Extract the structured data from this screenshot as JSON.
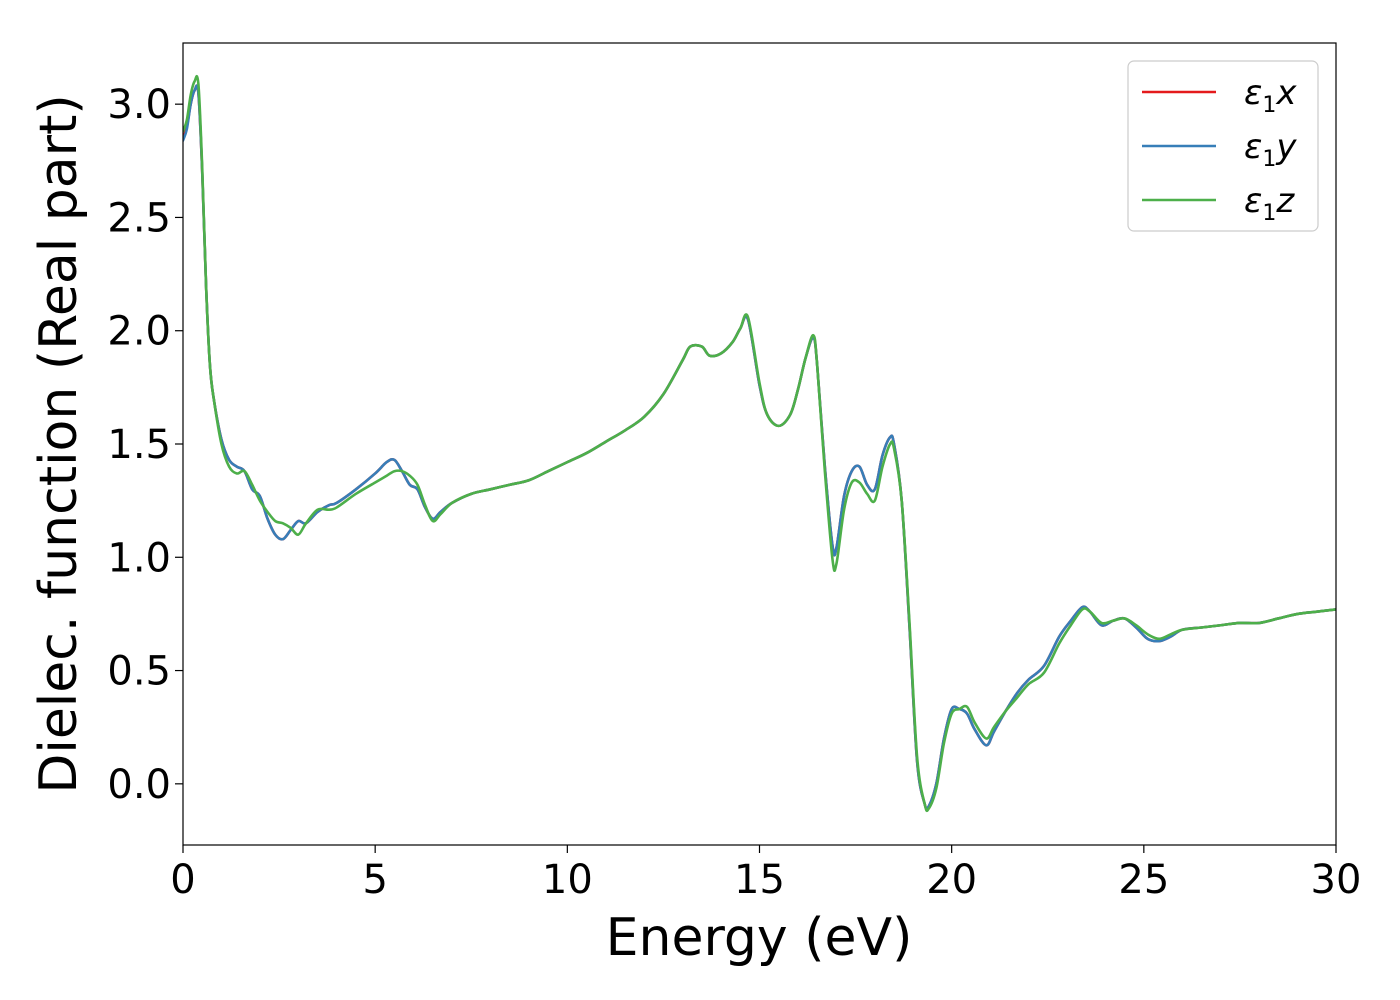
{
  "chart_data": {
    "type": "line",
    "xlabel": "Energy (eV)",
    "ylabel": "Dielec. function (Real part)",
    "xlim": [
      0,
      30
    ],
    "ylim": [
      -0.27,
      3.27
    ],
    "xticks": [
      0,
      5,
      10,
      15,
      20,
      25,
      30
    ],
    "xtick_labels": [
      "0",
      "5",
      "10",
      "15",
      "20",
      "25",
      "30"
    ],
    "yticks": [
      0.0,
      0.5,
      1.0,
      1.5,
      2.0,
      2.5,
      3.0
    ],
    "ytick_labels": [
      "0.0",
      "0.5",
      "1.0",
      "1.5",
      "2.0",
      "2.5",
      "3.0"
    ],
    "grid": false,
    "legend_position": "top-right",
    "series": [
      {
        "name": "ε1x",
        "legend_base": "ε",
        "legend_sub": "1",
        "legend_var": "x",
        "color": "#e41a1c",
        "x": [
          0,
          0.1,
          0.2,
          0.3,
          0.4,
          0.5,
          0.6,
          0.7,
          0.8,
          1.0,
          1.2,
          1.4,
          1.6,
          1.8,
          2.0,
          2.2,
          2.4,
          2.6,
          2.8,
          3.0,
          3.2,
          3.5,
          3.8,
          4.0,
          4.5,
          5.0,
          5.3,
          5.5,
          5.7,
          5.9,
          6.1,
          6.3,
          6.5,
          6.7,
          7.0,
          7.5,
          8.0,
          8.5,
          9.0,
          9.5,
          10,
          10.5,
          11,
          11.5,
          12,
          12.5,
          13,
          13.2,
          13.5,
          13.7,
          14,
          14.3,
          14.5,
          14.7,
          15,
          15.2,
          15.5,
          15.8,
          16,
          16.2,
          16.4,
          16.5,
          16.7,
          16.9,
          17.0,
          17.2,
          17.4,
          17.6,
          17.8,
          18.0,
          18.2,
          18.4,
          18.5,
          18.7,
          18.9,
          19.1,
          19.3,
          19.4,
          19.6,
          19.8,
          20.0,
          20.2,
          20.4,
          20.6,
          20.9,
          21.1,
          21.4,
          21.7,
          22.0,
          22.4,
          22.8,
          23.1,
          23.4,
          23.6,
          23.9,
          24.2,
          24.5,
          24.8,
          25.1,
          25.4,
          25.7,
          26,
          26.5,
          27,
          27.5,
          28,
          28.5,
          29,
          29.5,
          30
        ],
        "y": [
          2.85,
          2.9,
          3.0,
          3.06,
          3.05,
          2.7,
          2.2,
          1.85,
          1.7,
          1.52,
          1.43,
          1.4,
          1.38,
          1.3,
          1.27,
          1.17,
          1.1,
          1.08,
          1.12,
          1.16,
          1.15,
          1.2,
          1.23,
          1.24,
          1.3,
          1.37,
          1.42,
          1.43,
          1.38,
          1.32,
          1.3,
          1.22,
          1.17,
          1.2,
          1.24,
          1.28,
          1.3,
          1.32,
          1.34,
          1.38,
          1.42,
          1.46,
          1.51,
          1.56,
          1.62,
          1.72,
          1.87,
          1.93,
          1.93,
          1.89,
          1.9,
          1.95,
          2.01,
          2.05,
          1.76,
          1.63,
          1.58,
          1.63,
          1.74,
          1.88,
          1.97,
          1.85,
          1.4,
          1.05,
          1.04,
          1.27,
          1.38,
          1.4,
          1.32,
          1.3,
          1.45,
          1.53,
          1.5,
          1.25,
          0.7,
          0.1,
          -0.09,
          -0.1,
          0.0,
          0.2,
          0.33,
          0.33,
          0.31,
          0.24,
          0.17,
          0.23,
          0.32,
          0.4,
          0.46,
          0.52,
          0.65,
          0.72,
          0.78,
          0.76,
          0.7,
          0.72,
          0.73,
          0.69,
          0.64,
          0.63,
          0.65,
          0.68,
          0.69,
          0.7,
          0.71,
          0.71,
          0.73,
          0.75,
          0.76,
          0.77
        ]
      },
      {
        "name": "ε1y",
        "legend_base": "ε",
        "legend_sub": "1",
        "legend_var": "y",
        "color": "#377eb8",
        "x": [
          0,
          0.1,
          0.2,
          0.3,
          0.4,
          0.5,
          0.6,
          0.7,
          0.8,
          1.0,
          1.2,
          1.4,
          1.6,
          1.8,
          2.0,
          2.2,
          2.4,
          2.6,
          2.8,
          3.0,
          3.2,
          3.5,
          3.8,
          4.0,
          4.5,
          5.0,
          5.3,
          5.5,
          5.7,
          5.9,
          6.1,
          6.3,
          6.5,
          6.7,
          7.0,
          7.5,
          8.0,
          8.5,
          9.0,
          9.5,
          10,
          10.5,
          11,
          11.5,
          12,
          12.5,
          13,
          13.2,
          13.5,
          13.7,
          14,
          14.3,
          14.5,
          14.7,
          15,
          15.2,
          15.5,
          15.8,
          16,
          16.2,
          16.4,
          16.5,
          16.7,
          16.9,
          17.0,
          17.2,
          17.4,
          17.6,
          17.8,
          18.0,
          18.2,
          18.4,
          18.5,
          18.7,
          18.9,
          19.1,
          19.3,
          19.4,
          19.6,
          19.8,
          20.0,
          20.2,
          20.4,
          20.6,
          20.9,
          21.1,
          21.4,
          21.7,
          22.0,
          22.4,
          22.8,
          23.1,
          23.4,
          23.6,
          23.9,
          24.2,
          24.5,
          24.8,
          25.1,
          25.4,
          25.7,
          26,
          26.5,
          27,
          27.5,
          28,
          28.5,
          29,
          29.5,
          30
        ],
        "y": [
          2.84,
          2.89,
          3.0,
          3.06,
          3.05,
          2.7,
          2.2,
          1.85,
          1.7,
          1.52,
          1.43,
          1.4,
          1.38,
          1.3,
          1.27,
          1.17,
          1.1,
          1.08,
          1.12,
          1.16,
          1.15,
          1.2,
          1.23,
          1.24,
          1.3,
          1.37,
          1.42,
          1.43,
          1.38,
          1.32,
          1.3,
          1.22,
          1.17,
          1.2,
          1.24,
          1.28,
          1.3,
          1.32,
          1.34,
          1.38,
          1.42,
          1.46,
          1.51,
          1.56,
          1.62,
          1.72,
          1.87,
          1.93,
          1.93,
          1.89,
          1.9,
          1.95,
          2.01,
          2.05,
          1.76,
          1.63,
          1.58,
          1.63,
          1.74,
          1.88,
          1.97,
          1.85,
          1.4,
          1.05,
          1.04,
          1.27,
          1.38,
          1.4,
          1.32,
          1.3,
          1.45,
          1.53,
          1.5,
          1.25,
          0.7,
          0.1,
          -0.09,
          -0.1,
          0.0,
          0.2,
          0.33,
          0.33,
          0.31,
          0.24,
          0.17,
          0.23,
          0.32,
          0.4,
          0.46,
          0.52,
          0.65,
          0.72,
          0.78,
          0.76,
          0.7,
          0.72,
          0.73,
          0.69,
          0.64,
          0.63,
          0.65,
          0.68,
          0.69,
          0.7,
          0.71,
          0.71,
          0.73,
          0.75,
          0.76,
          0.77
        ]
      },
      {
        "name": "ε1z",
        "legend_base": "ε",
        "legend_sub": "1",
        "legend_var": "z",
        "color": "#4daf4a",
        "x": [
          0,
          0.1,
          0.2,
          0.3,
          0.4,
          0.5,
          0.6,
          0.7,
          0.8,
          1.0,
          1.2,
          1.4,
          1.6,
          1.8,
          2.0,
          2.2,
          2.4,
          2.6,
          2.8,
          3.0,
          3.2,
          3.5,
          3.8,
          4.0,
          4.5,
          5.0,
          5.3,
          5.5,
          5.7,
          5.9,
          6.1,
          6.3,
          6.5,
          6.7,
          7.0,
          7.5,
          8.0,
          8.5,
          9.0,
          9.5,
          10,
          10.5,
          11,
          11.5,
          12,
          12.5,
          13,
          13.2,
          13.5,
          13.7,
          14,
          14.3,
          14.5,
          14.7,
          15,
          15.2,
          15.5,
          15.8,
          16,
          16.2,
          16.4,
          16.5,
          16.7,
          16.9,
          17.0,
          17.2,
          17.4,
          17.6,
          17.8,
          18.0,
          18.2,
          18.4,
          18.5,
          18.7,
          18.9,
          19.1,
          19.3,
          19.4,
          19.6,
          19.8,
          20.0,
          20.2,
          20.4,
          20.6,
          20.9,
          21.1,
          21.4,
          21.7,
          22.0,
          22.4,
          22.8,
          23.1,
          23.4,
          23.6,
          23.9,
          24.2,
          24.5,
          24.8,
          25.1,
          25.4,
          25.7,
          26,
          26.5,
          27,
          27.5,
          28,
          28.5,
          29,
          29.5,
          30
        ],
        "y": [
          2.88,
          2.93,
          3.04,
          3.1,
          3.09,
          2.72,
          2.2,
          1.85,
          1.7,
          1.5,
          1.4,
          1.37,
          1.38,
          1.32,
          1.25,
          1.2,
          1.16,
          1.15,
          1.13,
          1.1,
          1.15,
          1.21,
          1.21,
          1.22,
          1.28,
          1.33,
          1.36,
          1.38,
          1.38,
          1.36,
          1.32,
          1.23,
          1.16,
          1.19,
          1.24,
          1.28,
          1.3,
          1.32,
          1.34,
          1.38,
          1.42,
          1.46,
          1.51,
          1.56,
          1.62,
          1.72,
          1.87,
          1.93,
          1.93,
          1.89,
          1.9,
          1.95,
          2.01,
          2.06,
          1.77,
          1.63,
          1.58,
          1.63,
          1.74,
          1.88,
          1.98,
          1.85,
          1.38,
          0.99,
          0.97,
          1.21,
          1.33,
          1.33,
          1.28,
          1.25,
          1.4,
          1.5,
          1.48,
          1.25,
          0.72,
          0.12,
          -0.09,
          -0.11,
          -0.02,
          0.18,
          0.31,
          0.33,
          0.34,
          0.27,
          0.2,
          0.25,
          0.32,
          0.38,
          0.44,
          0.49,
          0.62,
          0.7,
          0.77,
          0.76,
          0.71,
          0.72,
          0.73,
          0.7,
          0.66,
          0.64,
          0.66,
          0.68,
          0.69,
          0.7,
          0.71,
          0.71,
          0.73,
          0.75,
          0.76,
          0.77
        ]
      }
    ]
  }
}
